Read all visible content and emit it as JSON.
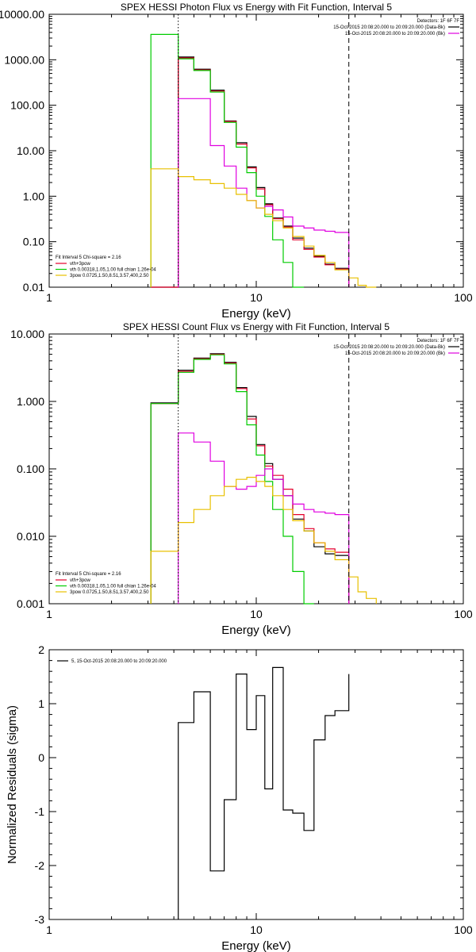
{
  "colors": {
    "background": "#ffffff",
    "axis": "#000000",
    "total": "#000000",
    "model": "#e4002b",
    "vth": "#00cc00",
    "bkg": "#e000e0",
    "pow": "#e8c000"
  },
  "chart_data": [
    {
      "type": "line",
      "title": "SPEX HESSI Photon Flux vs Energy with Fit Function, Interval 5",
      "xlabel": "Energy (keV)",
      "ylabel": "",
      "xscale": "log",
      "yscale": "log",
      "xlim": [
        1,
        100
      ],
      "ylim": [
        0.01,
        10000
      ],
      "xticks": [
        {
          "v": 1,
          "label": "1"
        },
        {
          "v": 10,
          "label": "10"
        },
        {
          "v": 100,
          "label": "100"
        }
      ],
      "yticks": [
        {
          "v": 0.01,
          "label": "0.01"
        },
        {
          "v": 0.1,
          "label": "0.10"
        },
        {
          "v": 1,
          "label": "1.00"
        },
        {
          "v": 10,
          "label": "10.00"
        },
        {
          "v": 100,
          "label": "100.00"
        },
        {
          "v": 1000,
          "label": "1000.00"
        },
        {
          "v": 10000,
          "label": "10000.00"
        }
      ],
      "vlines": [
        {
          "x": 4.2,
          "style": "dotted"
        },
        {
          "x": 28.0,
          "style": "dashed"
        }
      ],
      "legend_tr": {
        "header": "Detectors: 1F 6F 7F",
        "rows": [
          {
            "text": "15-Oct-2015 20:08:20.000 to 20:09:20.000 (Data-Bk)",
            "color": "#000000"
          },
          {
            "text": "15-Oct-2015 20:08:20.000 to 20:09:20.000 (Bk)",
            "color": "#e000e0"
          }
        ]
      },
      "legend_bl": {
        "header": "Fit Interval 5   Chi-square = 2.16",
        "rows": [
          {
            "text": "vth+3pow",
            "color": "#e4002b"
          },
          {
            "text": "vth 0.00318,1.05,1.00   full chian 1.26e-04",
            "color": "#00cc00"
          },
          {
            "text": "3pow 0.0725,1.50,8.51,3.57,400,2.50",
            "color": "#e8c000"
          }
        ]
      },
      "edges": [
        3.1,
        4.2,
        5.0,
        6.0,
        7.0,
        8.0,
        9.0,
        10.0,
        11.0,
        12.0,
        13.5,
        15.0,
        17.0,
        19.0,
        21.5,
        24.0,
        28.0,
        31.0,
        34.0,
        38.0
      ],
      "series": [
        {
          "name": "",
          "role": "total",
          "color": "#000000",
          "values": [
            0,
            1150,
            620,
            215,
            45,
            15,
            4.4,
            1.55,
            0.68,
            0.33,
            0.22,
            0.12,
            0.072,
            0.048,
            0.032,
            0.026,
            null,
            null,
            null
          ]
        },
        {
          "name": "vth+3pow",
          "role": "model",
          "color": "#e4002b",
          "values": [
            0,
            1100,
            600,
            205,
            44,
            14,
            4.2,
            1.45,
            0.65,
            0.32,
            0.21,
            0.11,
            0.068,
            0.046,
            0.031,
            0.025,
            null,
            null,
            null
          ]
        },
        {
          "name": "vth",
          "role": "vth",
          "color": "#00cc00",
          "values": [
            3600,
            1050,
            580,
            195,
            42,
            12,
            3.3,
            1.0,
            0.36,
            0.11,
            0.035,
            0.01,
            null,
            null,
            null,
            null,
            null,
            null,
            null
          ]
        },
        {
          "name": "",
          "role": "bkg",
          "color": "#e000e0",
          "values": [
            null,
            140,
            140,
            13,
            4.6,
            1.5,
            0.8,
            0.55,
            0.6,
            0.5,
            0.35,
            0.22,
            0.2,
            0.18,
            0.17,
            0.16,
            null,
            null,
            null
          ]
        },
        {
          "name": "3pow",
          "role": "pow",
          "color": "#e8c000",
          "values": [
            4.0,
            2.7,
            2.3,
            1.9,
            1.5,
            1.1,
            0.8,
            0.55,
            0.4,
            0.29,
            0.2,
            0.13,
            0.08,
            0.05,
            0.035,
            0.024,
            0.016,
            0.011,
            0.009
          ]
        }
      ]
    },
    {
      "type": "line",
      "title": "SPEX HESSI Count Flux vs Energy with Fit Function, Interval 5",
      "xlabel": "Energy (keV)",
      "ylabel": "",
      "xscale": "log",
      "yscale": "log",
      "xlim": [
        1,
        100
      ],
      "ylim": [
        0.001,
        10
      ],
      "xticks": [
        {
          "v": 1,
          "label": "1"
        },
        {
          "v": 10,
          "label": "10"
        },
        {
          "v": 100,
          "label": "100"
        }
      ],
      "yticks": [
        {
          "v": 0.001,
          "label": "0.001"
        },
        {
          "v": 0.01,
          "label": "0.010"
        },
        {
          "v": 0.1,
          "label": "0.100"
        },
        {
          "v": 1,
          "label": "1.000"
        },
        {
          "v": 10,
          "label": "10.000"
        }
      ],
      "vlines": [
        {
          "x": 4.2,
          "style": "dotted"
        },
        {
          "x": 28.0,
          "style": "dashed"
        }
      ],
      "legend_tr": {
        "header": "Detectors: 1F 6F 7F",
        "rows": [
          {
            "text": "15-Oct-2015 20:08:20.000 to 20:09:20.000 (Data-Bk)",
            "color": "#000000"
          },
          {
            "text": "15-Oct-2015 20:08:20.000 to 20:09:20.000 (Bk)",
            "color": "#e000e0"
          }
        ]
      },
      "legend_bl": {
        "header": "Fit Interval 5   Chi-square = 2.16",
        "rows": [
          {
            "text": "vth+3pow",
            "color": "#e4002b"
          },
          {
            "text": "vth 0.00318,1.05,1.00   full chian 1.26e-04",
            "color": "#00cc00"
          },
          {
            "text": "3pow 0.0725,1.50,8.51,3.57,400,2.50",
            "color": "#e8c000"
          }
        ]
      },
      "edges": [
        3.1,
        4.2,
        5.0,
        6.0,
        7.0,
        8.0,
        9.0,
        10.0,
        11.0,
        12.0,
        13.5,
        15.0,
        17.0,
        19.0,
        21.5,
        24.0,
        28.0,
        31.0,
        34.0,
        38.0
      ],
      "series": [
        {
          "name": "",
          "role": "total",
          "color": "#000000",
          "values": [
            0.95,
            2.9,
            4.4,
            5.1,
            3.8,
            1.6,
            0.6,
            0.23,
            0.12,
            0.07,
            0.04,
            0.018,
            0.012,
            0.007,
            0.0055,
            0.0052,
            null,
            null,
            null
          ]
        },
        {
          "name": "vth+3pow",
          "role": "model",
          "color": "#e4002b",
          "values": [
            0.93,
            2.8,
            4.3,
            5.0,
            3.7,
            1.55,
            0.55,
            0.22,
            0.11,
            0.08,
            0.05,
            0.021,
            0.013,
            0.008,
            0.0065,
            0.0058,
            null,
            null,
            null
          ]
        },
        {
          "name": "vth",
          "role": "vth",
          "color": "#00cc00",
          "values": [
            0.93,
            2.7,
            4.2,
            4.9,
            3.6,
            1.4,
            0.45,
            0.16,
            0.065,
            0.025,
            0.01,
            0.003,
            0.0008,
            null,
            null,
            null,
            null,
            null,
            null
          ]
        },
        {
          "name": "",
          "role": "bkg",
          "color": "#e000e0",
          "values": [
            null,
            0.34,
            0.25,
            0.13,
            0.055,
            0.05,
            0.055,
            0.08,
            0.1,
            0.07,
            0.04,
            0.03,
            0.025,
            0.023,
            0.022,
            0.021,
            null,
            null,
            null
          ]
        },
        {
          "name": "3pow",
          "role": "pow",
          "color": "#e8c000",
          "values": [
            0.006,
            0.016,
            0.025,
            0.04,
            0.055,
            0.07,
            0.075,
            0.065,
            0.055,
            0.04,
            0.025,
            0.017,
            0.012,
            0.008,
            0.006,
            0.0045,
            0.0025,
            0.0015,
            0.0012
          ]
        }
      ]
    },
    {
      "type": "line",
      "title": "",
      "xlabel": "Energy (keV)",
      "ylabel": "Normalized Residuals (sigma)",
      "xscale": "log",
      "yscale": "linear",
      "xlim": [
        1,
        100
      ],
      "ylim": [
        -3,
        2
      ],
      "xticks": [
        {
          "v": 1,
          "label": "1"
        },
        {
          "v": 10,
          "label": "10"
        },
        {
          "v": 100,
          "label": "100"
        }
      ],
      "yticks": [
        {
          "v": -3,
          "label": "-3"
        },
        {
          "v": -2,
          "label": "-2"
        },
        {
          "v": -1,
          "label": "-1"
        },
        {
          "v": 0,
          "label": "0"
        },
        {
          "v": 1,
          "label": "1"
        },
        {
          "v": 2,
          "label": "2"
        }
      ],
      "legend_tl": {
        "rows": [
          {
            "text": "5, 15-Oct-2015 20:08:20.000 to 20:09:20.000",
            "color": "#000000"
          }
        ]
      },
      "edges": [
        4.2,
        5.0,
        6.0,
        7.0,
        8.0,
        9.0,
        10.0,
        11.0,
        12.0,
        13.5,
        15.0,
        17.0,
        19.0,
        21.5,
        24.0,
        28.0
      ],
      "series": [
        {
          "name": "",
          "role": "residual",
          "color": "#000000",
          "values": [
            0.65,
            1.22,
            -2.1,
            -0.78,
            1.55,
            0.52,
            1.15,
            -0.58,
            1.67,
            -0.97,
            -1.03,
            -1.35,
            0.33,
            0.78,
            0.87,
            1.55
          ]
        }
      ]
    }
  ]
}
